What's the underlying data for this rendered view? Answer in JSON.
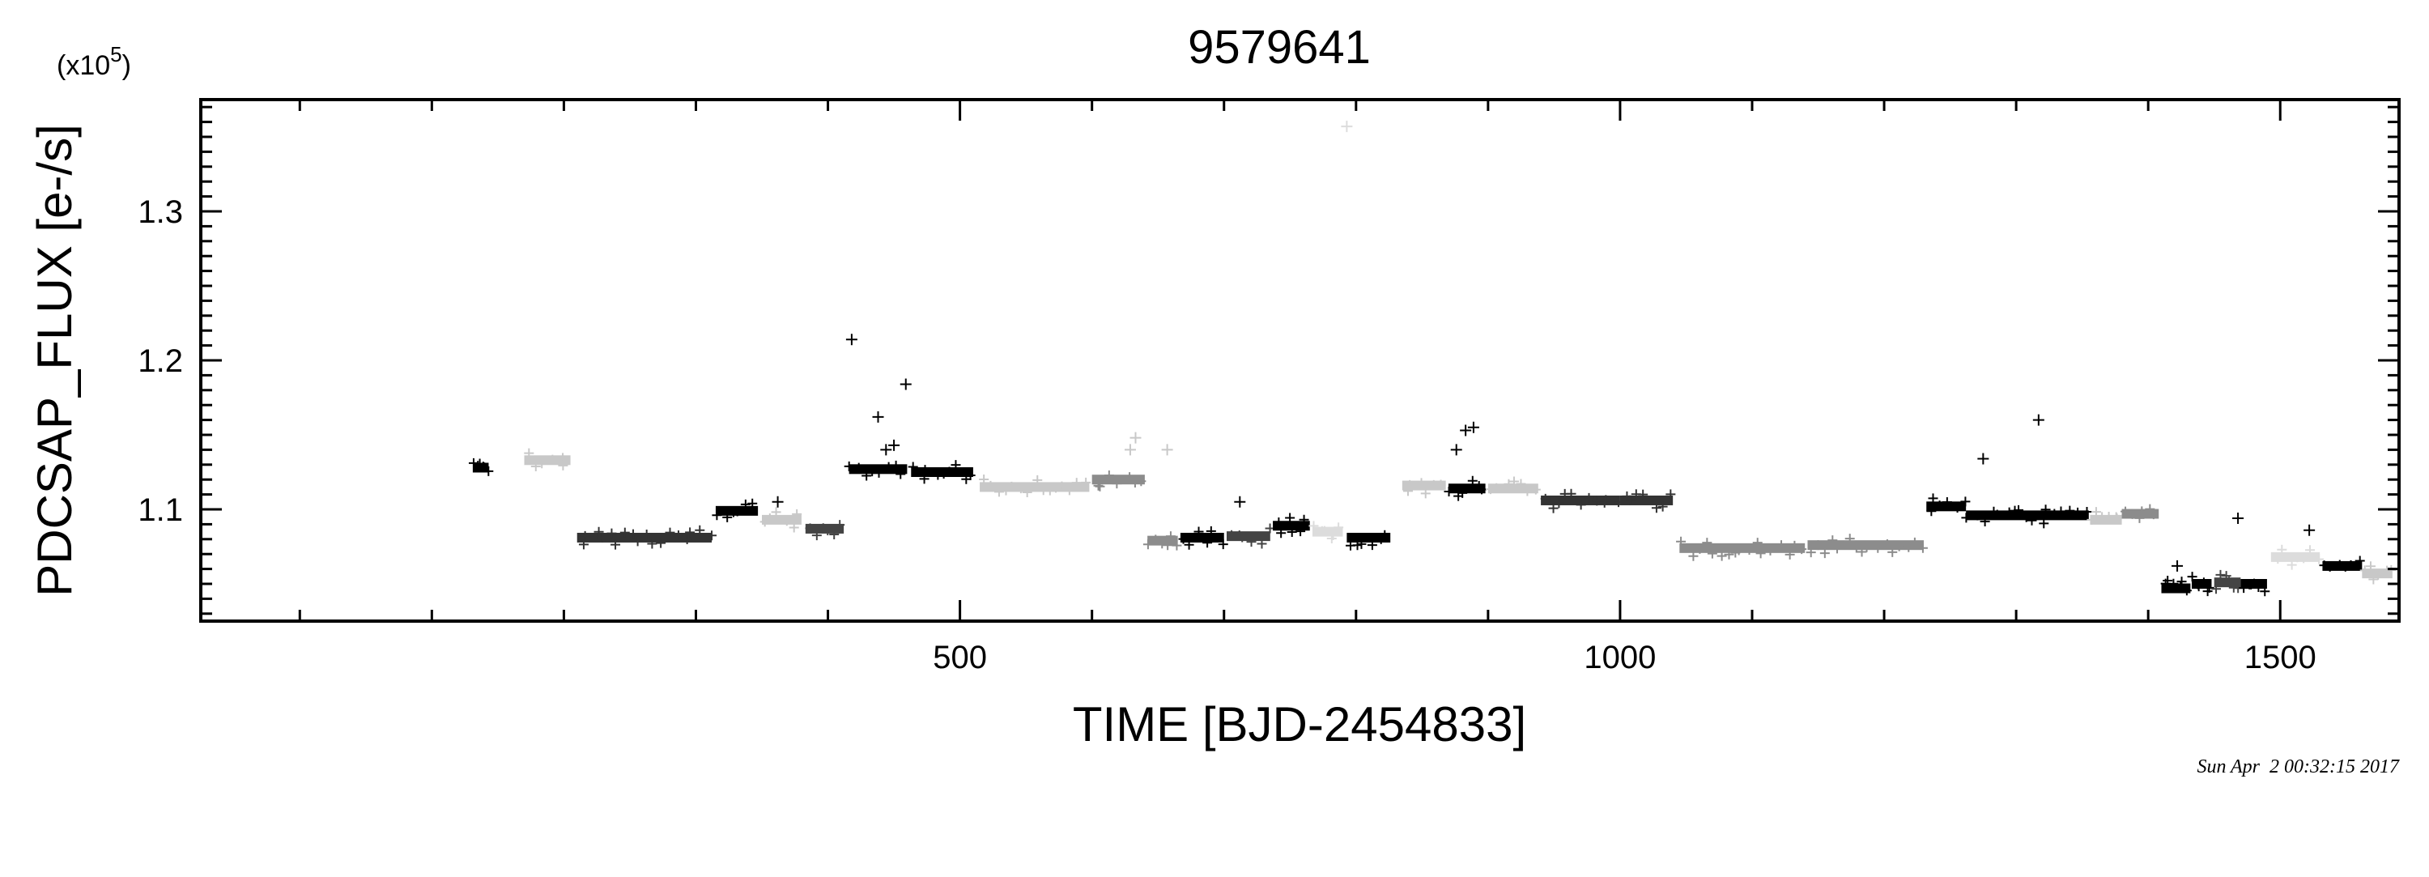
{
  "chart_data": {
    "type": "scatter",
    "title": "9579641",
    "xlabel": "TIME [BJD-2454833]",
    "ylabel": "PDCSAP_FLUX [e-/s]",
    "y_multiplier_label": "(x10",
    "y_multiplier_exp": "5",
    "y_multiplier_close": ")",
    "timestamp": "Sun Apr  2 00:32:15 2017",
    "xlim": [
      -75,
      1590
    ],
    "ylim": [
      1.025,
      1.375
    ],
    "x_ticks": [
      500,
      1000,
      1500
    ],
    "x_tick_labels": [
      "500",
      "1000",
      "1500"
    ],
    "y_ticks": [
      1.1,
      1.2,
      1.3
    ],
    "y_tick_labels": [
      "1.1",
      "1.2",
      "1.3"
    ],
    "grid": false,
    "legend": "none",
    "marker": "plus",
    "colors": {
      "black": "#000000",
      "dark_gray": "#444444",
      "mid_gray": "#8c8c8c",
      "light_gray": "#c8c8c8",
      "lighter_gray": "#dcdcdc"
    },
    "segments": [
      {
        "x": [
          131,
          143
        ],
        "y": 1.128,
        "color": "#000000"
      },
      {
        "x": [
          170,
          205
        ],
        "y": 1.133,
        "color": "#c8c8c8"
      },
      {
        "x": [
          210,
          312
        ],
        "y": 1.081,
        "color": "#333333"
      },
      {
        "x": [
          315,
          347
        ],
        "y": 1.099,
        "color": "#000000"
      },
      {
        "x": [
          350,
          380
        ],
        "y": 1.093,
        "color": "#c8c8c8"
      },
      {
        "x": [
          383,
          412
        ],
        "y": 1.087,
        "color": "#444444"
      },
      {
        "x": [
          416,
          460
        ],
        "y": 1.127,
        "color": "#000000"
      },
      {
        "x": [
          463,
          510
        ],
        "y": 1.125,
        "color": "#000000"
      },
      {
        "x": [
          515,
          598
        ],
        "y": 1.115,
        "color": "#c8c8c8"
      },
      {
        "x": [
          600,
          640
        ],
        "y": 1.12,
        "color": "#8c8c8c"
      },
      {
        "x": [
          642,
          665
        ],
        "y": 1.079,
        "color": "#8c8c8c"
      },
      {
        "x": [
          667,
          700
        ],
        "y": 1.081,
        "color": "#000000"
      },
      {
        "x": [
          702,
          735
        ],
        "y": 1.082,
        "color": "#444444"
      },
      {
        "x": [
          737,
          765
        ],
        "y": 1.089,
        "color": "#000000"
      },
      {
        "x": [
          767,
          790
        ],
        "y": 1.085,
        "color": "#dcdcdc"
      },
      {
        "x": [
          793,
          826
        ],
        "y": 1.081,
        "color": "#000000"
      },
      {
        "x": [
          835,
          868
        ],
        "y": 1.116,
        "color": "#c8c8c8"
      },
      {
        "x": [
          870,
          898
        ],
        "y": 1.114,
        "color": "#000000"
      },
      {
        "x": [
          900,
          938
        ],
        "y": 1.114,
        "color": "#c8c8c8"
      },
      {
        "x": [
          940,
          1000
        ],
        "y": 1.106,
        "color": "#333333"
      },
      {
        "x": [
          1000,
          1040
        ],
        "y": 1.106,
        "color": "#333333"
      },
      {
        "x": [
          1045,
          1140
        ],
        "y": 1.074,
        "color": "#8c8c8c"
      },
      {
        "x": [
          1142,
          1230
        ],
        "y": 1.076,
        "color": "#8c8c8c"
      },
      {
        "x": [
          1232,
          1262
        ],
        "y": 1.102,
        "color": "#000000"
      },
      {
        "x": [
          1262,
          1355
        ],
        "y": 1.096,
        "color": "#000000"
      },
      {
        "x": [
          1356,
          1380
        ],
        "y": 1.093,
        "color": "#c8c8c8"
      },
      {
        "x": [
          1380,
          1408
        ],
        "y": 1.097,
        "color": "#8c8c8c"
      },
      {
        "x": [
          1410,
          1432
        ],
        "y": 1.047,
        "color": "#000000"
      },
      {
        "x": [
          1433,
          1448
        ],
        "y": 1.05,
        "color": "#000000"
      },
      {
        "x": [
          1450,
          1470
        ],
        "y": 1.051,
        "color": "#444444"
      },
      {
        "x": [
          1470,
          1490
        ],
        "y": 1.05,
        "color": "#000000"
      },
      {
        "x": [
          1493,
          1530
        ],
        "y": 1.068,
        "color": "#dcdcdc"
      },
      {
        "x": [
          1532,
          1562
        ],
        "y": 1.062,
        "color": "#000000"
      },
      {
        "x": [
          1562,
          1585
        ],
        "y": 1.057,
        "color": "#c8c8c8"
      }
    ],
    "outliers": [
      {
        "x": 362,
        "y": 1.105,
        "color": "#000000"
      },
      {
        "x": 418,
        "y": 1.214,
        "color": "#000000"
      },
      {
        "x": 438,
        "y": 1.162,
        "color": "#000000"
      },
      {
        "x": 444,
        "y": 1.14,
        "color": "#000000"
      },
      {
        "x": 450,
        "y": 1.143,
        "color": "#000000"
      },
      {
        "x": 459,
        "y": 1.184,
        "color": "#000000"
      },
      {
        "x": 629,
        "y": 1.14,
        "color": "#c8c8c8"
      },
      {
        "x": 633,
        "y": 1.148,
        "color": "#c8c8c8"
      },
      {
        "x": 657,
        "y": 1.14,
        "color": "#c8c8c8"
      },
      {
        "x": 712,
        "y": 1.105,
        "color": "#000000"
      },
      {
        "x": 793,
        "y": 1.357,
        "color": "#dcdcdc"
      },
      {
        "x": 876,
        "y": 1.14,
        "color": "#000000"
      },
      {
        "x": 883,
        "y": 1.153,
        "color": "#000000"
      },
      {
        "x": 889,
        "y": 1.155,
        "color": "#000000"
      },
      {
        "x": 1275,
        "y": 1.134,
        "color": "#000000"
      },
      {
        "x": 1317,
        "y": 1.16,
        "color": "#000000"
      },
      {
        "x": 1422,
        "y": 1.062,
        "color": "#000000"
      },
      {
        "x": 1468,
        "y": 1.094,
        "color": "#000000"
      },
      {
        "x": 1522,
        "y": 1.086,
        "color": "#000000"
      }
    ]
  }
}
